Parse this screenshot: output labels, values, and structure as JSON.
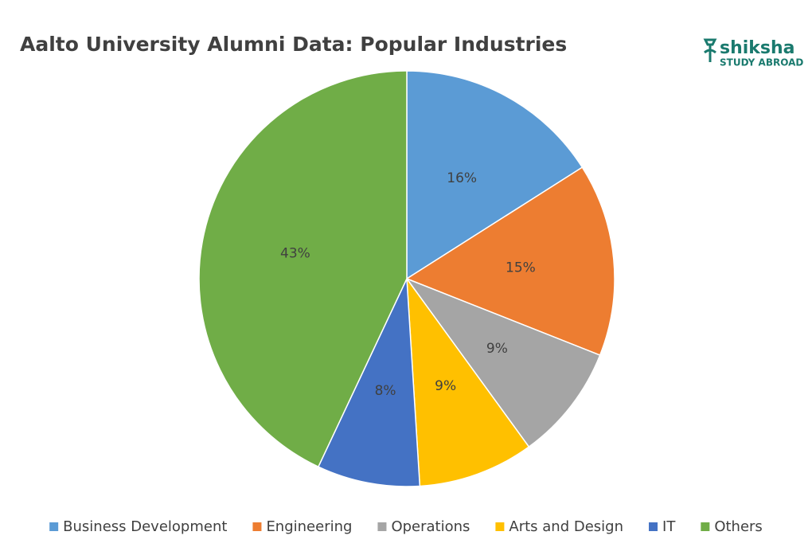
{
  "chart_data": {
    "type": "pie",
    "title": "Aalto University Alumni Data: Popular Industries",
    "categories": [
      "Business Development",
      "Engineering",
      "Operations",
      "Arts and Design",
      "IT",
      "Others"
    ],
    "values": [
      16,
      15,
      9,
      9,
      8,
      43
    ],
    "value_labels": [
      "16%",
      "15%",
      "9%",
      "9%",
      "8%",
      "43%"
    ],
    "colors": [
      "#5b9bd5",
      "#ed7d31",
      "#a5a5a5",
      "#ffc000",
      "#4472c4",
      "#70ad47"
    ],
    "legend": "bottom"
  },
  "logo": {
    "name": "shiksha",
    "tagline": "STUDY ABROAD"
  }
}
